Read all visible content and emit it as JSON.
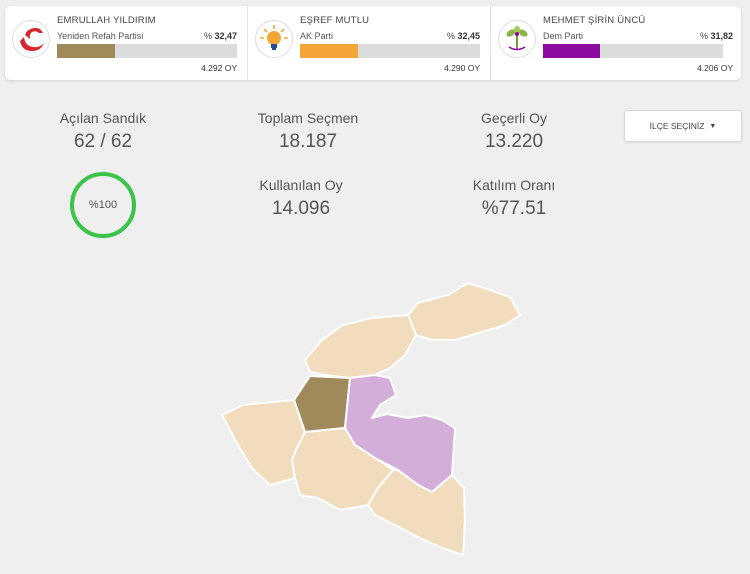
{
  "candidates": [
    {
      "name": "EMRULLAH YILDIRIM",
      "party": "Yeniden Refah Partisi",
      "pct_prefix": "%",
      "pct": "32,47",
      "pct_value": 32.47,
      "votes": "4.292 OY",
      "color": "#a08a5b",
      "logo": "refah-logo"
    },
    {
      "name": "EŞREF MUTLU",
      "party": "AK Parti",
      "pct_prefix": "%",
      "pct": "32,45",
      "pct_value": 32.45,
      "votes": "4.290 OY",
      "color": "#f3a536",
      "logo": "ak-parti-bulb-logo"
    },
    {
      "name": "MEHMET ŞİRİN ÜNCÜ",
      "party": "Dem Parti",
      "pct_prefix": "%",
      "pct": "31,82",
      "pct_value": 31.82,
      "votes": "4.206 OY",
      "color": "#8c0a9f",
      "logo": "dem-parti-logo"
    }
  ],
  "stats": {
    "acilan_sandik": {
      "label": "Açılan Sandık",
      "value": "62 / 62"
    },
    "toplam_secmen": {
      "label": "Toplam Seçmen",
      "value": "18.187"
    },
    "gecerli_oy": {
      "label": "Geçerli Oy",
      "value": "13.220"
    },
    "kullanilan_oy": {
      "label": "Kullanılan Oy",
      "value": "14.096"
    },
    "katilim_orani": {
      "label": "Katılım Oranı",
      "value": "%77.51"
    },
    "percent_ring": "%100"
  },
  "ilce_select": {
    "label": "İLÇE SEÇİNİZ"
  },
  "map": {
    "colors": {
      "refah": "#a08a5b",
      "dem": "#d3aed9",
      "neutral": "#f1ddbd"
    }
  }
}
